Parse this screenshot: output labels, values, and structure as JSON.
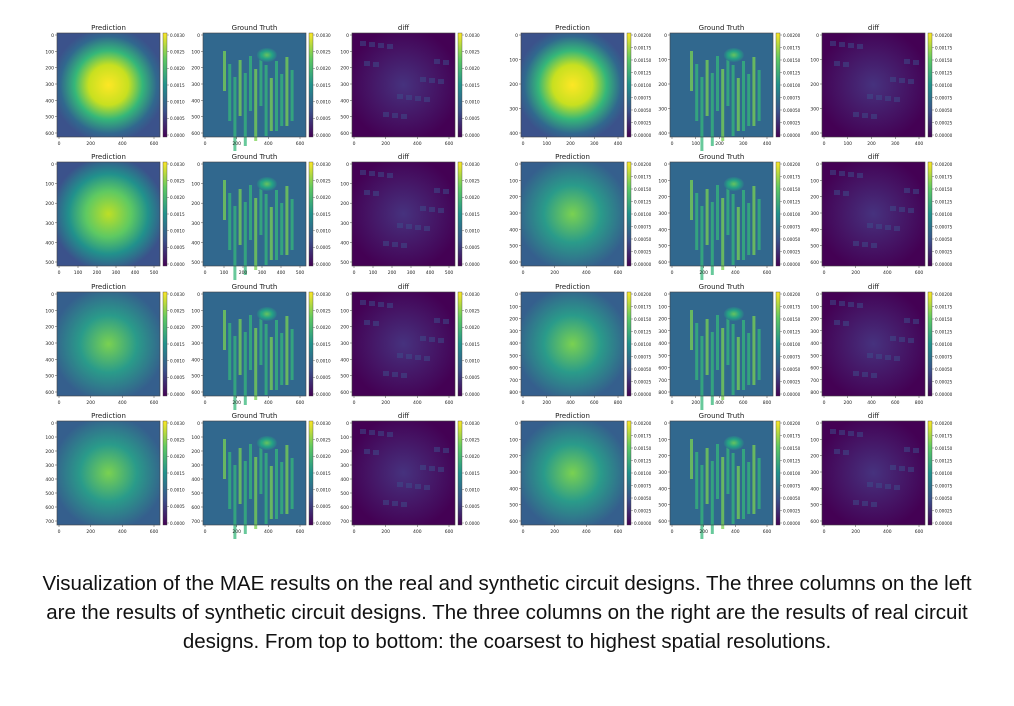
{
  "figure": {
    "panel_titles": [
      "Prediction",
      "Ground Truth",
      "diff"
    ],
    "colormap": [
      "#440154",
      "#3b528b",
      "#21918c",
      "#5ec962",
      "#fde725"
    ],
    "left_group": {
      "colorbar_ticks": [
        "0.0030",
        "0.0025",
        "0.0020",
        "0.0015",
        "0.0010",
        "0.0005",
        "0.0000"
      ],
      "rows": [
        {
          "y_ticks": [
            "0",
            "100",
            "200",
            "300",
            "400",
            "500",
            "600"
          ],
          "x_ticks": [
            "0",
            "200",
            "400",
            "600"
          ]
        },
        {
          "y_ticks": [
            "0",
            "100",
            "200",
            "300",
            "400",
            "500"
          ],
          "x_ticks": [
            "0",
            "100",
            "200",
            "300",
            "400",
            "500"
          ]
        },
        {
          "y_ticks": [
            "0",
            "100",
            "200",
            "300",
            "400",
            "500",
            "600"
          ],
          "x_ticks": [
            "0",
            "200",
            "400",
            "600"
          ]
        },
        {
          "y_ticks": [
            "0",
            "100",
            "200",
            "300",
            "400",
            "500",
            "600",
            "700"
          ],
          "x_ticks": [
            "0",
            "200",
            "400",
            "600"
          ]
        }
      ]
    },
    "right_group": {
      "colorbar_ticks": [
        "0.00200",
        "0.00175",
        "0.00150",
        "0.00125",
        "0.00100",
        "0.00075",
        "0.00050",
        "0.00025",
        "0.00000"
      ],
      "rows": [
        {
          "y_ticks": [
            "0",
            "100",
            "200",
            "300",
            "400"
          ],
          "x_ticks": [
            "0",
            "100",
            "200",
            "300",
            "400"
          ]
        },
        {
          "y_ticks": [
            "0",
            "100",
            "200",
            "300",
            "400",
            "500",
            "600"
          ],
          "x_ticks": [
            "0",
            "200",
            "400",
            "600"
          ]
        },
        {
          "y_ticks": [
            "0",
            "100",
            "200",
            "300",
            "400",
            "500",
            "600",
            "700",
            "800"
          ],
          "x_ticks": [
            "0",
            "200",
            "400",
            "600",
            "800"
          ]
        },
        {
          "y_ticks": [
            "0",
            "100",
            "200",
            "300",
            "400",
            "500",
            "600"
          ],
          "x_ticks": [
            "0",
            "200",
            "400",
            "600"
          ]
        }
      ]
    }
  },
  "caption": "Visualization of the MAE results on the real and synthetic circuit designs. The three columns on the left are the results of synthetic circuit designs. The three columns on the right are the results of real circuit designs. From top to bottom: the coarsest to highest spatial resolutions."
}
